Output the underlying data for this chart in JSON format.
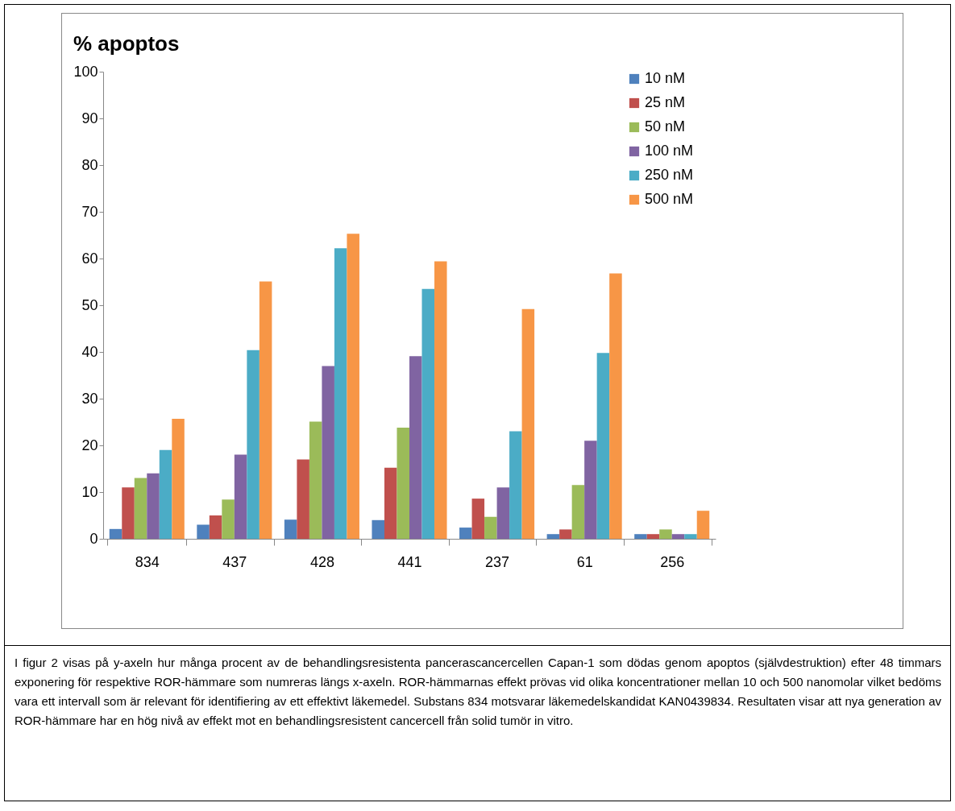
{
  "chart_data": {
    "type": "bar",
    "title": "% apoptos",
    "categories": [
      "834",
      "437",
      "428",
      "441",
      "237",
      "61",
      "256"
    ],
    "series": [
      {
        "name": "10 nM",
        "color": "#4f81bd",
        "values": [
          2.1,
          3,
          4.1,
          4,
          2.4,
          1,
          1
        ]
      },
      {
        "name": "25 nM",
        "color": "#c0504d",
        "values": [
          11,
          5,
          17,
          15.2,
          8.6,
          2,
          1
        ]
      },
      {
        "name": "50 nM",
        "color": "#9bbb59",
        "values": [
          13,
          8.4,
          25.1,
          23.8,
          4.7,
          11.5,
          2
        ]
      },
      {
        "name": "100 nM",
        "color": "#8064a2",
        "values": [
          14,
          18,
          37,
          39.1,
          11,
          21,
          1
        ]
      },
      {
        "name": "250 nM",
        "color": "#4bacc6",
        "values": [
          19,
          40.4,
          62.2,
          53.5,
          23,
          39.8,
          1
        ]
      },
      {
        "name": "500 nM",
        "color": "#f79646",
        "values": [
          25.7,
          55.1,
          65.3,
          59.4,
          49.2,
          56.8,
          6
        ]
      }
    ],
    "ylim": [
      0,
      100
    ],
    "yticks": [
      0,
      10,
      20,
      30,
      40,
      50,
      60,
      70,
      80,
      90,
      100
    ],
    "grid": false,
    "legend": "right",
    "annotations": [
      "I figur 2 visas på y-axeln hur många procent av de behandlingsresistenta pancerascancercellen Capan-1 som dödas genom apoptos (självdestruktion) efter 48 timmars exponering för respektive ROR-hämmare som numreras längs x-axeln. ROR-hämmarnas effekt prövas vid olika koncentrationer mellan 10 och 500 nanomolar vilket bedöms vara ett intervall som är relevant för identifiering av ett effektivt läkemedel. Substans 834 motsvarar läkemedelskandidat KAN0439834. Resultaten visar att nya generation av ROR-hämmare har en hög nivå av effekt mot en behandlingsresistent cancercell från solid tumör in vitro."
    ]
  }
}
